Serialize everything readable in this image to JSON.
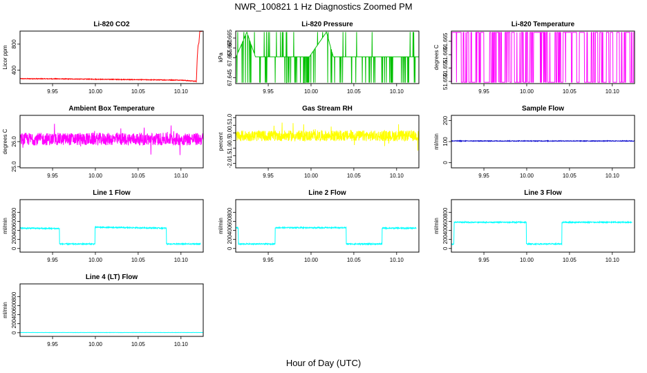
{
  "title": "NWR_100821  1 Hz Diagnostics Zoomed PM",
  "xaxis_label": "Hour of Day (UTC)",
  "chart_data": [
    {
      "type": "line",
      "title": "Li-820 CO2",
      "ylabel": "Licor ppm",
      "color": "#ff0000",
      "xlim": [
        9.912,
        10.126
      ],
      "ylim": [
        195,
        1000
      ],
      "xticks": [
        9.95,
        10.0,
        10.05,
        10.1
      ],
      "xticklabels": [
        "9.95",
        "10.00",
        "10.05",
        "10.10"
      ],
      "yticks": [
        400,
        800
      ],
      "yticklabels": [
        "400",
        "800"
      ],
      "pattern": "trend",
      "noise": 5,
      "x": [
        9.912,
        9.95,
        10.0,
        10.05,
        10.1,
        10.118,
        10.119,
        10.12,
        10.121,
        10.122,
        10.126
      ],
      "y": [
        270,
        268,
        262,
        255,
        248,
        230,
        600,
        780,
        820,
        1000,
        1000
      ]
    },
    {
      "type": "line",
      "title": "Li-820 Pressure",
      "ylabel": "kPa",
      "color": "#00c000",
      "xlim": [
        9.912,
        10.126
      ],
      "ylim": [
        67.642,
        67.6685
      ],
      "xticks": [
        9.95,
        10.0,
        10.05,
        10.1
      ],
      "xticklabels": [
        "9.95",
        "10.00",
        "10.05",
        "10.10"
      ],
      "yticks": [
        67.645,
        67.655,
        67.66,
        67.665
      ],
      "yticklabels": [
        "67.645",
        "67.655",
        "67.660",
        "67.665"
      ],
      "pattern": "levels",
      "levels": [
        67.6425,
        67.6555,
        67.668
      ],
      "x": [
        9.912,
        9.925,
        9.935,
        9.96,
        9.998,
        10.018,
        10.026,
        10.126
      ],
      "y": [
        67.655,
        67.668,
        67.6555,
        67.6555,
        67.6555,
        67.668,
        67.6555,
        67.6555
      ]
    },
    {
      "type": "line",
      "title": "Li-820 Temperature",
      "ylabel": "degrees C",
      "color": "#ff00ff",
      "xlim": [
        9.912,
        10.126
      ],
      "ylim": [
        51.6492,
        51.6688
      ],
      "xticks": [
        9.95,
        10.0,
        10.05,
        10.1
      ],
      "xticklabels": [
        "9.95",
        "10.00",
        "10.05",
        "10.10"
      ],
      "yticks": [
        51.65,
        51.655,
        51.66,
        51.665
      ],
      "yticklabels": [
        "51.650",
        "51.655",
        "51.660",
        "51.665"
      ],
      "pattern": "binary",
      "levels": [
        51.6497,
        51.6683
      ],
      "x": [
        9.912,
        10.126
      ],
      "y": [
        51.6497,
        51.6683
      ]
    },
    {
      "type": "line",
      "title": "Ambient Box Temperature",
      "ylabel": "degrees C",
      "color": "#ff00ff",
      "xlim": [
        9.912,
        10.126
      ],
      "ylim": [
        24.95,
        27.05
      ],
      "xticks": [
        9.95,
        10.0,
        10.05,
        10.1
      ],
      "xticklabels": [
        "9.95",
        "10.00",
        "10.05",
        "10.10"
      ],
      "yticks": [
        25.0,
        26.0
      ],
      "yticklabels": [
        "25.0",
        "26.0"
      ],
      "pattern": "noise",
      "noise": 0.25,
      "x": [
        9.912,
        10.126
      ],
      "y": [
        26.1,
        26.1
      ]
    },
    {
      "type": "line",
      "title": "Gas Stream RH",
      "ylabel": "percent",
      "color": "#ffff00",
      "xlim": [
        9.912,
        10.126
      ],
      "ylim": [
        -2.3,
        1.15
      ],
      "xticks": [
        9.95,
        10.0,
        10.05,
        10.1
      ],
      "xticklabels": [
        "9.95",
        "10.00",
        "10.05",
        "10.10"
      ],
      "yticks": [
        -2.0,
        -1.5,
        -1.0,
        -0.5,
        0.0,
        0.5,
        1.0
      ],
      "yticklabels": [
        "-2.0",
        "-1.5",
        "-1.0",
        "-0.5",
        "0.0",
        "0.5",
        "1.0"
      ],
      "pattern": "noise",
      "noise": 0.35,
      "x": [
        9.912,
        10.126
      ],
      "y": [
        -0.2,
        -0.2
      ]
    },
    {
      "type": "line",
      "title": "Sample Flow",
      "ylabel": "ml/min",
      "color": "#0000cc",
      "xlim": [
        9.912,
        10.126
      ],
      "ylim": [
        -25,
        225
      ],
      "xticks": [
        9.95,
        10.0,
        10.05,
        10.1
      ],
      "xticklabels": [
        "9.95",
        "10.00",
        "10.05",
        "10.10"
      ],
      "yticks": [
        0,
        100,
        200
      ],
      "yticklabels": [
        "0",
        "100",
        "200"
      ],
      "pattern": "trend",
      "noise": 1.5,
      "x": [
        9.912,
        10.126
      ],
      "y": [
        103,
        103
      ]
    },
    {
      "type": "line",
      "title": "Line 1 Flow",
      "ylabel": "ml/min",
      "color": "#00ffff",
      "xlim": [
        9.912,
        10.126
      ],
      "ylim": [
        -80,
        1080
      ],
      "xticks": [
        9.95,
        10.0,
        10.05,
        10.1
      ],
      "xticklabels": [
        "9.95",
        "10.00",
        "10.05",
        "10.10"
      ],
      "yticks": [
        0,
        200,
        400,
        600,
        800
      ],
      "yticklabels": [
        "0",
        "200",
        "400",
        "600",
        "800"
      ],
      "pattern": "trend",
      "noise": 12,
      "x": [
        9.912,
        9.958,
        9.9581,
        9.9995,
        9.9996,
        10.083,
        10.0831,
        10.123
      ],
      "y": [
        450,
        440,
        100,
        100,
        470,
        450,
        100,
        100
      ]
    },
    {
      "type": "line",
      "title": "Line 2 Flow",
      "ylabel": "ml/min",
      "color": "#00ffff",
      "xlim": [
        9.912,
        10.126
      ],
      "ylim": [
        -80,
        1080
      ],
      "xticks": [
        9.95,
        10.0,
        10.05,
        10.1
      ],
      "xticklabels": [
        "9.95",
        "10.00",
        "10.05",
        "10.10"
      ],
      "yticks": [
        0,
        200,
        400,
        600,
        800
      ],
      "yticklabels": [
        "0",
        "200",
        "400",
        "600",
        "800"
      ],
      "pattern": "trend",
      "noise": 12,
      "x": [
        9.912,
        9.915,
        9.9151,
        9.958,
        9.9581,
        10.041,
        10.0411,
        10.083,
        10.0831,
        10.123
      ],
      "y": [
        460,
        460,
        100,
        100,
        460,
        460,
        100,
        100,
        450,
        450
      ]
    },
    {
      "type": "line",
      "title": "Line 3 Flow",
      "ylabel": "ml/min",
      "color": "#00ffff",
      "xlim": [
        9.912,
        10.126
      ],
      "ylim": [
        -80,
        1080
      ],
      "xticks": [
        9.95,
        10.0,
        10.05,
        10.1
      ],
      "xticklabels": [
        "9.95",
        "10.00",
        "10.05",
        "10.10"
      ],
      "yticks": [
        0,
        200,
        400,
        600,
        800
      ],
      "yticklabels": [
        "0",
        "200",
        "400",
        "600",
        "800"
      ],
      "pattern": "trend",
      "noise": 12,
      "x": [
        9.912,
        9.915,
        9.9151,
        9.9995,
        9.9996,
        10.041,
        10.0411,
        10.123
      ],
      "y": [
        100,
        100,
        580,
        580,
        100,
        100,
        580,
        580
      ]
    },
    {
      "type": "line",
      "title": "Line 4 (LT) Flow",
      "ylabel": "ml/min",
      "color": "#00ffff",
      "xlim": [
        9.912,
        10.126
      ],
      "ylim": [
        -80,
        1080
      ],
      "xticks": [
        9.95,
        10.0,
        10.05,
        10.1
      ],
      "xticklabels": [
        "9.95",
        "10.00",
        "10.05",
        "10.10"
      ],
      "yticks": [
        0,
        200,
        400,
        600,
        800
      ],
      "yticklabels": [
        "0",
        "200",
        "400",
        "600",
        "800"
      ],
      "pattern": "trend",
      "noise": 2,
      "x": [
        9.912,
        10.126
      ],
      "y": [
        5,
        5
      ]
    }
  ]
}
